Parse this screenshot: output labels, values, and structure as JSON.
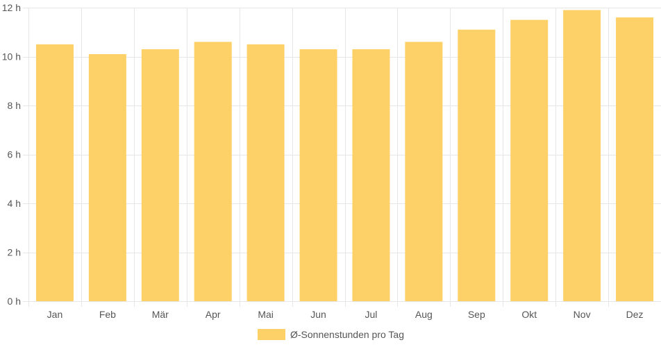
{
  "chart_data": {
    "type": "bar",
    "categories": [
      "Jan",
      "Feb",
      "Mär",
      "Apr",
      "Mai",
      "Jun",
      "Jul",
      "Aug",
      "Sep",
      "Okt",
      "Nov",
      "Dez"
    ],
    "series": [
      {
        "name": "Ø-Sonnenstunden pro Tag",
        "values": [
          10.5,
          10.1,
          10.3,
          10.6,
          10.5,
          10.3,
          10.3,
          10.6,
          11.1,
          11.5,
          11.9,
          11.6
        ],
        "color": "#fdd167"
      }
    ],
    "ylim": [
      0,
      12
    ],
    "y_ticks": [
      0,
      2,
      4,
      6,
      8,
      10,
      12
    ],
    "y_tick_labels": [
      "0 h",
      "2 h",
      "4 h",
      "6 h",
      "8 h",
      "10 h",
      "12 h"
    ],
    "grid": true,
    "legend_position": "bottom-center",
    "colors": {
      "grid": "#e6e6e6",
      "axis_text": "#555555"
    }
  }
}
